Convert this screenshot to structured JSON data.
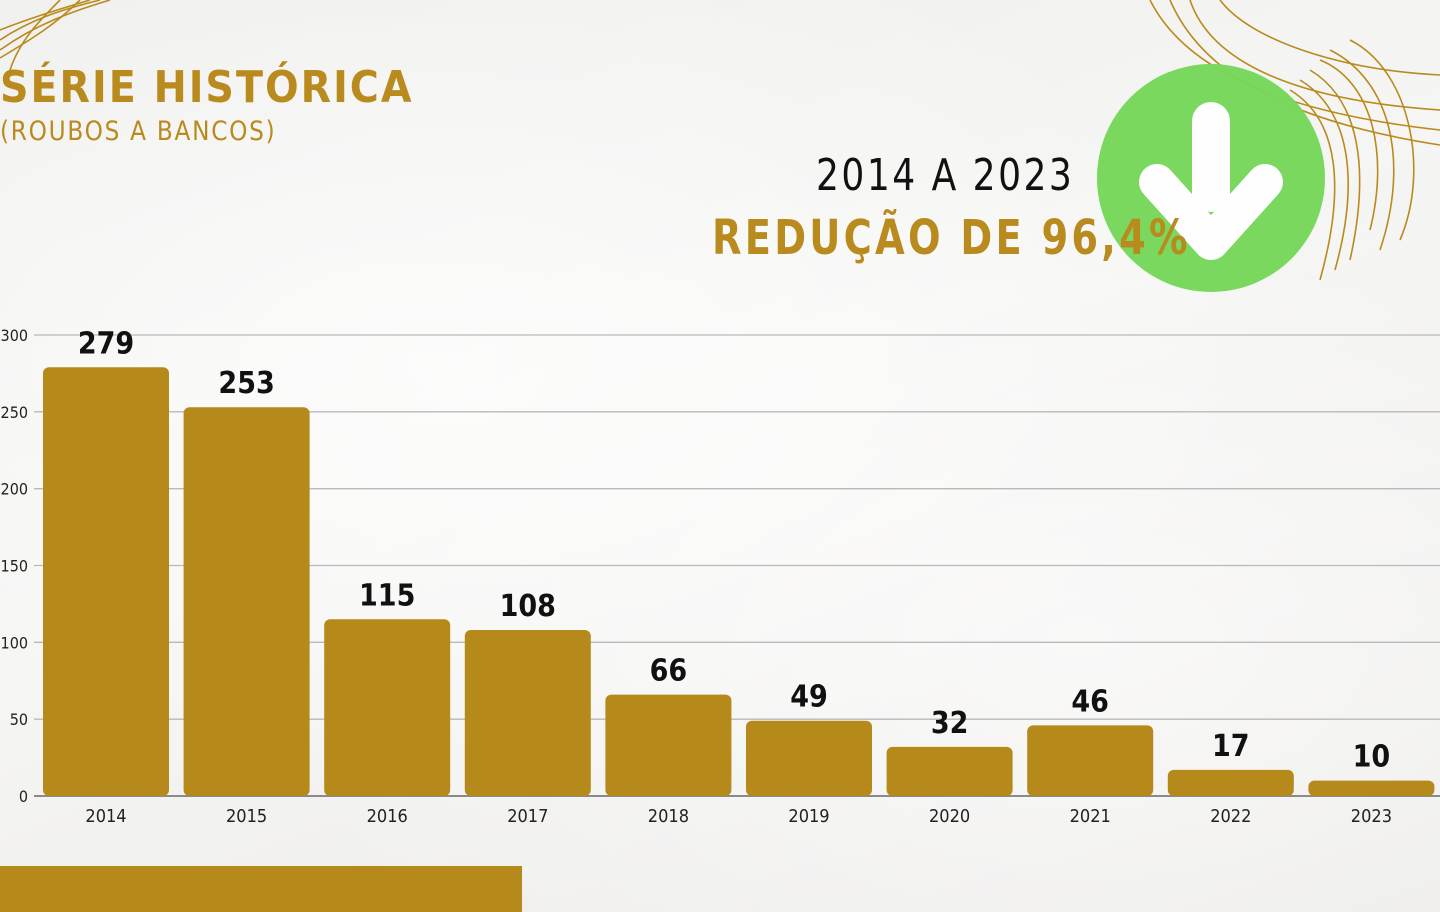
{
  "header": {
    "title": "SÉRIE HISTÓRICA",
    "subtitle": "(ROUBOS A BANCOS)",
    "period": "2014 A 2023",
    "reduction": "REDUÇÃO DE 96,4%"
  },
  "badge": {
    "icon": "arrow-down-icon",
    "color": "#77d85b"
  },
  "colors": {
    "accent": "#b5891a",
    "grid": "#b9b9b9"
  },
  "chart_data": {
    "type": "bar",
    "categories": [
      "2014",
      "2015",
      "2016",
      "2017",
      "2018",
      "2019",
      "2020",
      "2021",
      "2022",
      "2023"
    ],
    "values": [
      279,
      253,
      115,
      108,
      66,
      49,
      32,
      46,
      17,
      10
    ],
    "data_labels": [
      "279",
      "253",
      "115",
      "108",
      "66",
      "49",
      "32",
      "46",
      "17",
      "10"
    ],
    "yticks": [
      0,
      50,
      100,
      150,
      200,
      250,
      300
    ],
    "ylim": [
      0,
      300
    ],
    "grid": true,
    "bar_color": "#b5891a"
  }
}
